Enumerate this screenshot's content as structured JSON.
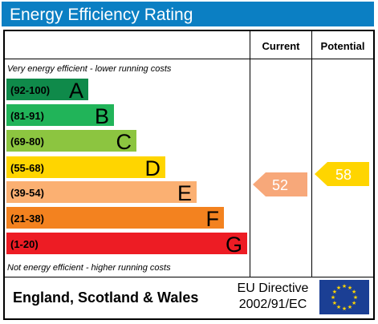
{
  "header": {
    "title": "Energy Efficiency Rating"
  },
  "columns": {
    "current": "Current",
    "potential": "Potential"
  },
  "notes": {
    "top": "Very energy efficient - lower running costs",
    "bottom": "Not energy efficient - higher running costs"
  },
  "bands": [
    {
      "range": "(92-100)",
      "letter": "A",
      "color": "#0f8a4a"
    },
    {
      "range": "(81-91)",
      "letter": "B",
      "color": "#21b459"
    },
    {
      "range": "(69-80)",
      "letter": "C",
      "color": "#8cc540"
    },
    {
      "range": "(55-68)",
      "letter": "D",
      "color": "#ffd500"
    },
    {
      "range": "(39-54)",
      "letter": "E",
      "color": "#fbb072"
    },
    {
      "range": "(21-38)",
      "letter": "F",
      "color": "#f3821f"
    },
    {
      "range": "(1-20)",
      "letter": "G",
      "color": "#ed1c24"
    }
  ],
  "ratings": {
    "current": {
      "value": "52",
      "color": "#f7a87a"
    },
    "potential": {
      "value": "58",
      "color": "#ffd500"
    }
  },
  "footer": {
    "country": "England, Scotland & Wales",
    "directive_line1": "EU Directive",
    "directive_line2": "2002/91/EC",
    "flag_color": "#1b3f94",
    "star_color": "#ffd500"
  }
}
